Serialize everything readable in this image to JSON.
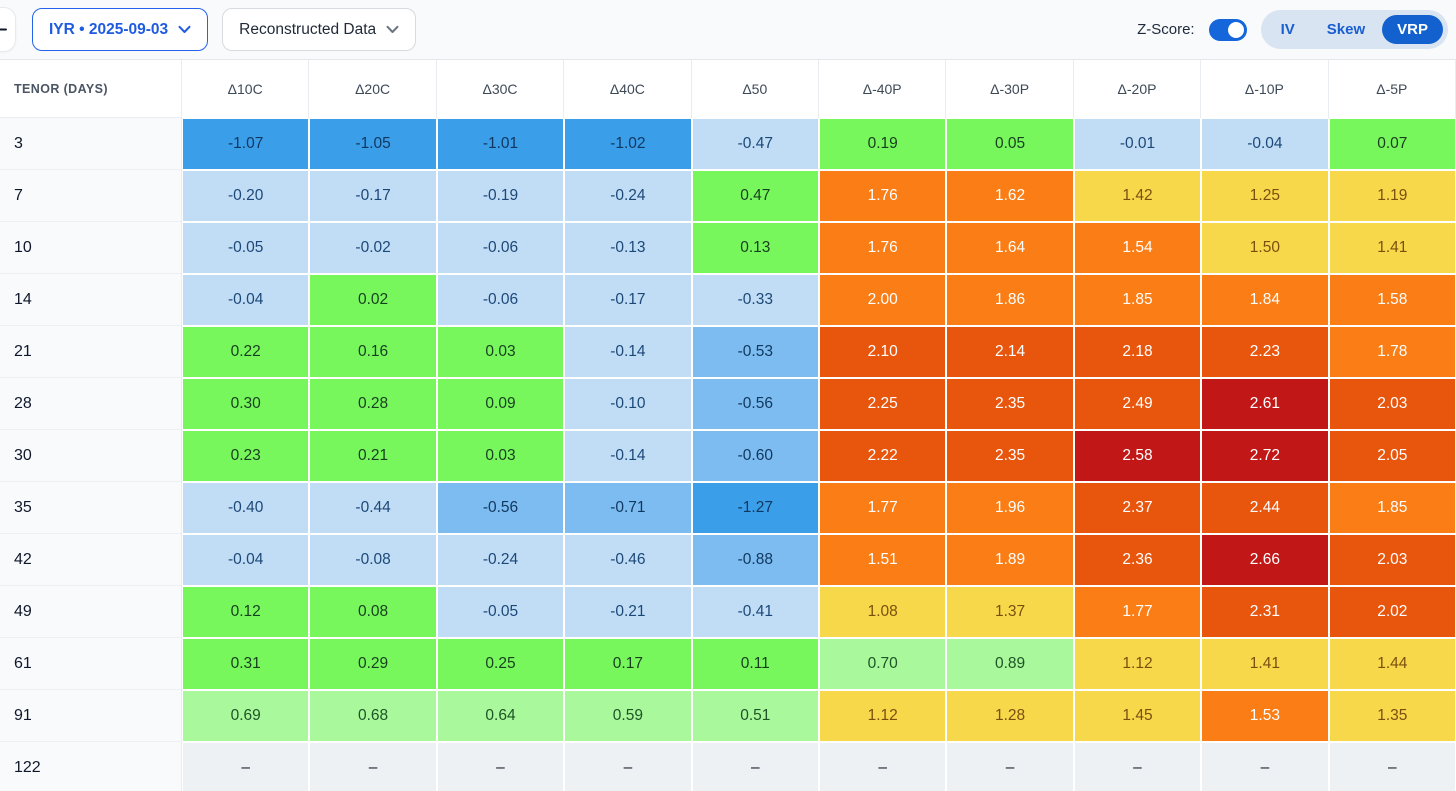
{
  "toolbar": {
    "back_label": "back",
    "ticker_select": "IYR • 2025-09-03",
    "source_select": "Reconstructed Data",
    "zscore_label": "Z-Score:",
    "zscore_toggle_on": true,
    "tabs": [
      {
        "label": "IV",
        "active": false
      },
      {
        "label": "Skew",
        "active": false
      },
      {
        "label": "VRP",
        "active": true
      }
    ],
    "accent_blue": "#1261ce"
  },
  "table": {
    "corner_header": "TENOR (DAYS)",
    "empty_cell": "–",
    "empty_bg": "#eef1f4",
    "empty_fg": "#111827"
  },
  "chart_data": {
    "type": "heatmap",
    "x_labels": [
      "Δ10C",
      "Δ20C",
      "Δ30C",
      "Δ40C",
      "Δ50",
      "Δ-40P",
      "Δ-30P",
      "Δ-20P",
      "Δ-10P",
      "Δ-5P"
    ],
    "y_labels": [
      "3",
      "7",
      "10",
      "14",
      "21",
      "28",
      "30",
      "35",
      "42",
      "49",
      "61",
      "91",
      "122"
    ],
    "values": [
      [
        -1.07,
        -1.05,
        -1.01,
        -1.02,
        -0.47,
        0.19,
        0.05,
        -0.01,
        -0.04,
        0.07
      ],
      [
        -0.2,
        -0.17,
        -0.19,
        -0.24,
        0.47,
        1.76,
        1.62,
        1.42,
        1.25,
        1.19
      ],
      [
        -0.05,
        -0.02,
        -0.06,
        -0.13,
        0.13,
        1.76,
        1.64,
        1.54,
        1.5,
        1.41
      ],
      [
        -0.04,
        0.02,
        -0.06,
        -0.17,
        -0.33,
        2.0,
        1.86,
        1.85,
        1.84,
        1.58
      ],
      [
        0.22,
        0.16,
        0.03,
        -0.14,
        -0.53,
        2.1,
        2.14,
        2.18,
        2.23,
        1.78
      ],
      [
        0.3,
        0.28,
        0.09,
        -0.1,
        -0.56,
        2.25,
        2.35,
        2.49,
        2.61,
        2.03
      ],
      [
        0.23,
        0.21,
        0.03,
        -0.14,
        -0.6,
        2.22,
        2.35,
        2.58,
        2.72,
        2.05
      ],
      [
        -0.4,
        -0.44,
        -0.56,
        -0.71,
        -1.27,
        1.77,
        1.96,
        2.37,
        2.44,
        1.85
      ],
      [
        -0.04,
        -0.08,
        -0.24,
        -0.46,
        -0.88,
        1.51,
        1.89,
        2.36,
        2.66,
        2.03
      ],
      [
        0.12,
        0.08,
        -0.05,
        -0.21,
        -0.41,
        1.08,
        1.37,
        1.77,
        2.31,
        2.02
      ],
      [
        0.31,
        0.29,
        0.25,
        0.17,
        0.11,
        0.7,
        0.89,
        1.12,
        1.41,
        1.44
      ],
      [
        0.69,
        0.68,
        0.64,
        0.59,
        0.51,
        1.12,
        1.28,
        1.45,
        1.53,
        1.35
      ],
      [
        null,
        null,
        null,
        null,
        null,
        null,
        null,
        null,
        null,
        null
      ]
    ],
    "palette": [
      {
        "max": -1.0,
        "bg": "#3b9ee9",
        "fg": "#12375f"
      },
      {
        "max": -0.5,
        "bg": "#7cbcf0",
        "fg": "#12375f"
      },
      {
        "max": 0.0,
        "bg": "#c1ddf6",
        "fg": "#1c4878"
      },
      {
        "max": 0.5,
        "bg": "#78f75d",
        "fg": "#173f1f"
      },
      {
        "max": 1.0,
        "bg": "#a9f89b",
        "fg": "#1e5426"
      },
      {
        "max": 1.505,
        "bg": "#f8d84b",
        "fg": "#7a4f0e"
      },
      {
        "max": 2.0,
        "bg": "#fa7d16",
        "fg": "#ffffff"
      },
      {
        "max": 2.5,
        "bg": "#e8560e",
        "fg": "#ffffff"
      },
      {
        "max": 99,
        "bg": "#c11717",
        "fg": "#ffffff"
      }
    ]
  }
}
